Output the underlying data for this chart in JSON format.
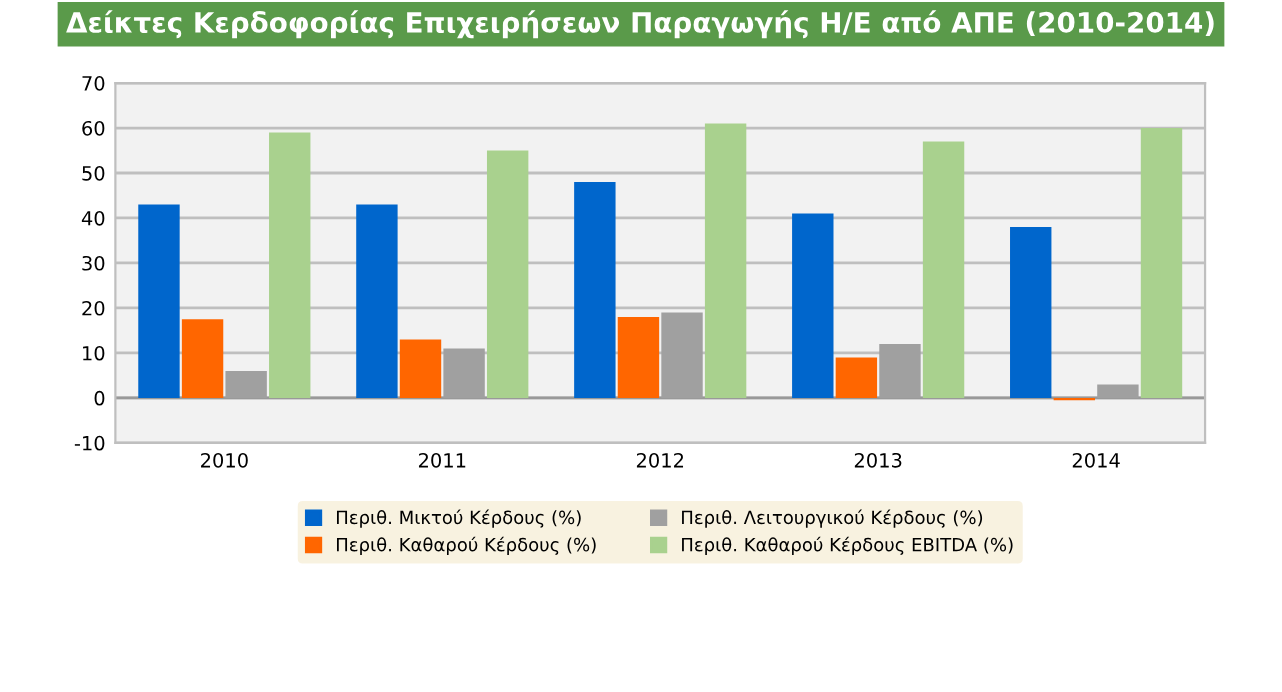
{
  "chart_data": {
    "type": "bar",
    "title": "Δείκτες Κερδοφορίας Επιχειρήσεων Παραγωγής Η/Ε από ΑΠΕ (2010-2014)",
    "categories": [
      "2010",
      "2011",
      "2012",
      "2013",
      "2014"
    ],
    "series": [
      {
        "name": "Περιθ. Μικτού Κέρδους (%)",
        "color": "#0066cc",
        "values": [
          43,
          43,
          48,
          41,
          38
        ]
      },
      {
        "name": "Περιθ. Καθαρού Κέρδους (%)",
        "color": "#ff6600",
        "values": [
          17.5,
          13,
          18,
          9,
          -0.5
        ]
      },
      {
        "name": "Περιθ. Λειτουργικού Κέρδους (%)",
        "color": "#a0a0a0",
        "values": [
          6,
          11,
          19,
          12,
          3
        ]
      },
      {
        "name": "Περιθ. Καθαρού Κέρδους EBITDA (%)",
        "color": "#a9d18e",
        "values": [
          59,
          55,
          61,
          57,
          60
        ]
      }
    ],
    "ylim": [
      -10,
      70
    ],
    "yticks": [
      -10,
      0,
      10,
      20,
      30,
      40,
      50,
      60,
      70
    ],
    "grid": "y",
    "legend": "bottom"
  }
}
